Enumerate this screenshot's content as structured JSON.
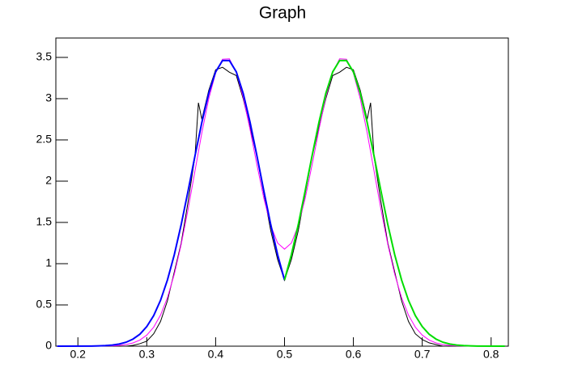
{
  "chart_data": {
    "type": "line",
    "title": "Graph",
    "xlim": [
      0.168,
      0.825
    ],
    "ylim": [
      0,
      3.735
    ],
    "xticks": [
      0.2,
      0.3,
      0.4,
      0.5,
      0.6,
      0.7,
      0.8
    ],
    "yticks": [
      0,
      0.5,
      1,
      1.5,
      2,
      2.5,
      3,
      3.5
    ],
    "series": [
      {
        "color": "#000000",
        "x": [
          0.17,
          0.27,
          0.28,
          0.29,
          0.3,
          0.31,
          0.32,
          0.33,
          0.34,
          0.35,
          0.36,
          0.37,
          0.375,
          0.38,
          0.39,
          0.4,
          0.41,
          0.42,
          0.43,
          0.44,
          0.45,
          0.46,
          0.47,
          0.48,
          0.49,
          0.5,
          0.51,
          0.52,
          0.53,
          0.54,
          0.55,
          0.56,
          0.57,
          0.58,
          0.59,
          0.6,
          0.61,
          0.62,
          0.625,
          0.63,
          0.64,
          0.65,
          0.66,
          0.67,
          0.68,
          0.69,
          0.7,
          0.71,
          0.72,
          0.73,
          0.82
        ],
        "values": [
          0,
          0,
          0.01,
          0.03,
          0.06,
          0.15,
          0.3,
          0.55,
          0.9,
          1.25,
          1.75,
          2.3,
          2.95,
          2.75,
          3.1,
          3.35,
          3.38,
          3.32,
          3.28,
          3.0,
          2.65,
          2.3,
          1.85,
          1.4,
          1.05,
          0.8,
          1.05,
          1.4,
          1.85,
          2.3,
          2.65,
          3.0,
          3.28,
          3.32,
          3.38,
          3.35,
          3.1,
          2.75,
          2.95,
          2.3,
          1.75,
          1.25,
          0.9,
          0.55,
          0.3,
          0.15,
          0.08,
          0.04,
          0.02,
          0,
          0
        ]
      },
      {
        "color": "#ff00ff",
        "x": [
          0.17,
          0.25,
          0.26,
          0.27,
          0.28,
          0.29,
          0.3,
          0.31,
          0.32,
          0.33,
          0.34,
          0.35,
          0.36,
          0.37,
          0.38,
          0.39,
          0.4,
          0.41,
          0.42,
          0.43,
          0.44,
          0.45,
          0.46,
          0.47,
          0.48,
          0.49,
          0.5,
          0.51,
          0.52,
          0.53,
          0.54,
          0.55,
          0.56,
          0.57,
          0.58,
          0.59,
          0.6,
          0.61,
          0.62,
          0.63,
          0.64,
          0.65,
          0.66,
          0.67,
          0.68,
          0.69,
          0.7,
          0.71,
          0.72,
          0.73,
          0.74,
          0.75,
          0.82
        ],
        "values": [
          0,
          0.004,
          0.009,
          0.02,
          0.039,
          0.074,
          0.134,
          0.23,
          0.377,
          0.588,
          0.873,
          1.233,
          1.659,
          2.123,
          2.587,
          3.0,
          3.311,
          3.478,
          3.482,
          3.32,
          3.02,
          2.626,
          2.197,
          1.793,
          1.463,
          1.25,
          1.176,
          1.25,
          1.463,
          1.793,
          2.197,
          2.626,
          3.02,
          3.32,
          3.482,
          3.478,
          3.311,
          3.0,
          2.587,
          2.123,
          1.659,
          1.233,
          0.873,
          0.588,
          0.377,
          0.23,
          0.134,
          0.074,
          0.039,
          0.02,
          0.009,
          0.004,
          0
        ]
      },
      {
        "color": "#0000ff",
        "x": [
          0.17,
          0.22,
          0.23,
          0.24,
          0.25,
          0.26,
          0.27,
          0.28,
          0.29,
          0.3,
          0.31,
          0.32,
          0.33,
          0.34,
          0.35,
          0.36,
          0.37,
          0.38,
          0.39,
          0.4,
          0.41,
          0.42,
          0.43,
          0.44,
          0.45,
          0.46,
          0.47,
          0.48,
          0.49,
          0.5
        ],
        "values": [
          0,
          0.0015,
          0.0033,
          0.0069,
          0.014,
          0.026,
          0.048,
          0.086,
          0.145,
          0.237,
          0.37,
          0.556,
          0.802,
          1.109,
          1.474,
          1.882,
          2.306,
          2.713,
          3.065,
          3.325,
          3.462,
          3.462,
          3.325,
          3.065,
          2.713,
          2.306,
          1.882,
          1.474,
          1.109,
          0.802
        ]
      },
      {
        "color": "#00dd00",
        "x": [
          0.5,
          0.51,
          0.52,
          0.53,
          0.54,
          0.55,
          0.56,
          0.57,
          0.58,
          0.59,
          0.6,
          0.61,
          0.62,
          0.63,
          0.64,
          0.65,
          0.66,
          0.67,
          0.68,
          0.69,
          0.7,
          0.71,
          0.72,
          0.73,
          0.74,
          0.75,
          0.76,
          0.77,
          0.78,
          0.82
        ],
        "values": [
          0.802,
          1.109,
          1.474,
          1.882,
          2.306,
          2.713,
          3.065,
          3.325,
          3.462,
          3.462,
          3.325,
          3.065,
          2.713,
          2.306,
          1.882,
          1.474,
          1.109,
          0.802,
          0.556,
          0.37,
          0.237,
          0.145,
          0.086,
          0.048,
          0.026,
          0.014,
          0.0069,
          0.0033,
          0.0015,
          0
        ]
      }
    ]
  }
}
